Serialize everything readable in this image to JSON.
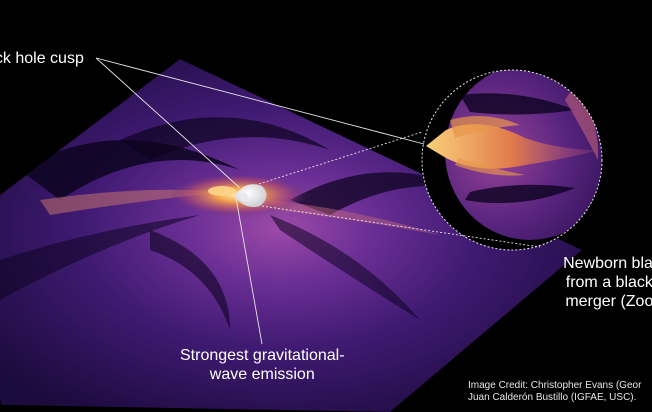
{
  "labels": {
    "cusp": "ack hole cusp",
    "emission_line1": "Strongest gravitational-",
    "emission_line2": "wave emission",
    "newborn_line1": "Newborn black",
    "newborn_line2": "from a black h",
    "newborn_line3": "merger (Zoom"
  },
  "credit": {
    "line1": "Image Credit: Christopher Evans (Geor",
    "line2": "Juan Calderón Bustillo (IGFAE, USC)."
  },
  "colors": {
    "background": "#000000",
    "plane_dark": "#1a0a3a",
    "plane_mid": "#4a1f7a",
    "plane_bright": "#8a3fa8",
    "glow": "#f2a34a",
    "core": "#f3f0f0",
    "annotation_lines": "#e6e6e6"
  }
}
